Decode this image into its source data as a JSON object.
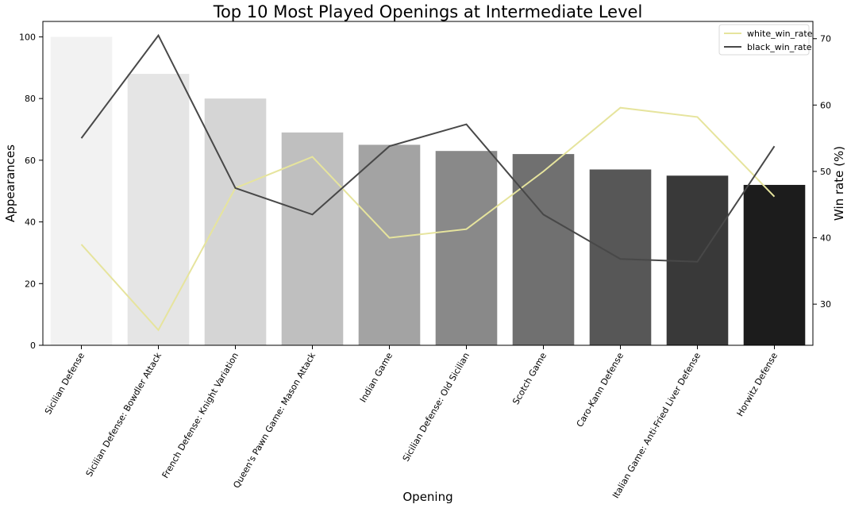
{
  "chart_data": {
    "type": "bar",
    "title": "Top 10 Most Played Openings at Intermediate Level",
    "xlabel": "Opening",
    "ylabel": "Appearances",
    "y2label": "Win rate (%)",
    "categories": [
      "Sicilian Defense",
      "Sicilian Defense: Bowdler Attack",
      "French Defense: Knight Variation",
      "Queen's Pawn Game: Mason Attack",
      "Indian Game",
      "Sicilian Defense: Old Sicilian",
      "Scotch Game",
      "Caro-Kann Defense",
      "Italian Game: Anti-Fried Liver Defense",
      "Horwitz Defense"
    ],
    "bar_series": {
      "name": "Appearances",
      "values": [
        100,
        88,
        80,
        69,
        65,
        63,
        62,
        57,
        55,
        52
      ],
      "colors": [
        "#f2f2f2",
        "#e5e5e5",
        "#d5d5d5",
        "#bfbfbf",
        "#a3a3a3",
        "#898989",
        "#707070",
        "#575757",
        "#393939",
        "#1c1c1c"
      ]
    },
    "line_series": [
      {
        "name": "white_win_rate",
        "axis": "right",
        "color": "#e6e49d",
        "values": [
          39.0,
          26.1,
          47.5,
          52.2,
          40.0,
          41.3,
          50.0,
          59.6,
          58.2,
          46.2
        ]
      },
      {
        "name": "black_win_rate",
        "axis": "right",
        "color": "#484848",
        "values": [
          55.0,
          70.5,
          47.5,
          43.5,
          53.8,
          57.1,
          43.5,
          36.8,
          36.4,
          53.8
        ]
      }
    ],
    "ylim": [
      0,
      105
    ],
    "y2lim": [
      23.8,
      72.6
    ],
    "yticks": [
      0,
      20,
      40,
      60,
      80,
      100
    ],
    "y2ticks": [
      30,
      40,
      50,
      60,
      70
    ],
    "legend_position": "top-right"
  }
}
